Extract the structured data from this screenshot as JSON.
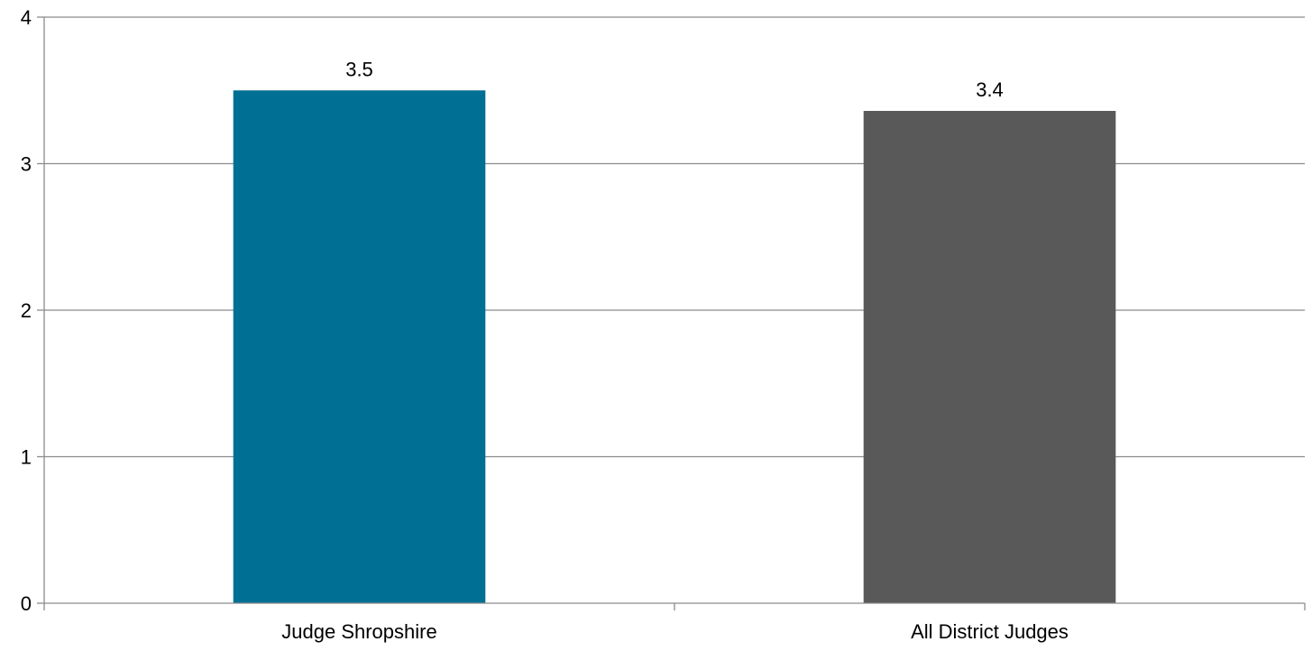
{
  "chart_data": {
    "type": "bar",
    "categories": [
      "Judge Shropshire",
      "All District Judges"
    ],
    "values": [
      3.5,
      3.36
    ],
    "data_labels": [
      "3.5",
      "3.4"
    ],
    "colors": [
      "#006f94",
      "#595959"
    ],
    "ylim": [
      0,
      4
    ],
    "yticks": [
      0,
      1,
      2,
      3,
      4
    ],
    "title": "",
    "xlabel": "",
    "ylabel": "",
    "grid": true,
    "legend": "none"
  }
}
